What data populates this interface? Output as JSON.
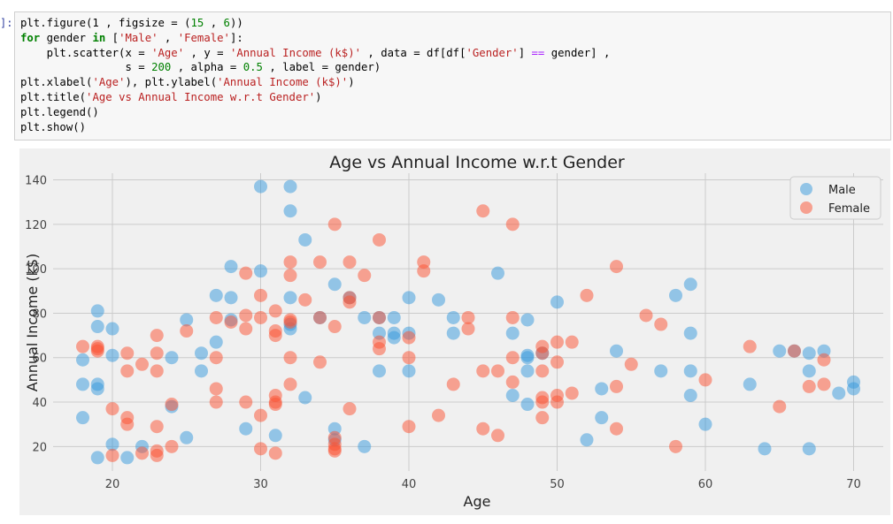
{
  "cell": {
    "prompt": "]:",
    "code_lines": [
      [
        {
          "t": "plt.figure(1 , figsize = ("
        },
        {
          "t": "15",
          "c": "num"
        },
        {
          "t": " , "
        },
        {
          "t": "6",
          "c": "num"
        },
        {
          "t": "))"
        }
      ],
      [
        {
          "t": "for",
          "c": "kw"
        },
        {
          "t": " gender "
        },
        {
          "t": "in",
          "c": "kw"
        },
        {
          "t": " ["
        },
        {
          "t": "'Male'",
          "c": "str"
        },
        {
          "t": " , "
        },
        {
          "t": "'Female'",
          "c": "str"
        },
        {
          "t": "]:"
        }
      ],
      [
        {
          "t": "    plt.scatter(x = "
        },
        {
          "t": "'Age'",
          "c": "str"
        },
        {
          "t": " , y = "
        },
        {
          "t": "'Annual Income (k$)'",
          "c": "str"
        },
        {
          "t": " , data = df[df["
        },
        {
          "t": "'Gender'",
          "c": "str"
        },
        {
          "t": "] "
        },
        {
          "t": "==",
          "c": "op"
        },
        {
          "t": " gender] ,"
        }
      ],
      [
        {
          "t": "                s = "
        },
        {
          "t": "200",
          "c": "num"
        },
        {
          "t": " , alpha = "
        },
        {
          "t": "0.5",
          "c": "num"
        },
        {
          "t": " , label = gender)"
        }
      ],
      [
        {
          "t": "plt.xlabel("
        },
        {
          "t": "'Age'",
          "c": "str"
        },
        {
          "t": "), plt.ylabel("
        },
        {
          "t": "'Annual Income (k$)'",
          "c": "str"
        },
        {
          "t": ")"
        }
      ],
      [
        {
          "t": "plt.title("
        },
        {
          "t": "'Age vs Annual Income w.r.t Gender'",
          "c": "str"
        },
        {
          "t": ")"
        }
      ],
      [
        {
          "t": "plt.legend()"
        }
      ],
      [
        {
          "t": "plt.show()"
        }
      ]
    ]
  },
  "chart_data": {
    "type": "scatter",
    "title": "Age vs Annual Income w.r.t Gender",
    "xlabel": "Age",
    "ylabel": "Annual Income (k$)",
    "xlim": [
      16,
      72
    ],
    "ylim": [
      9,
      143
    ],
    "xticks": [
      20,
      30,
      40,
      50,
      60,
      70
    ],
    "yticks": [
      20,
      40,
      60,
      80,
      100,
      120,
      140
    ],
    "grid": true,
    "legend_position": "top-right",
    "background": "#f0f0f0",
    "series": [
      {
        "name": "Male",
        "color": "#3498db",
        "points": [
          [
            18,
            33
          ],
          [
            18,
            48
          ],
          [
            18,
            59
          ],
          [
            19,
            15
          ],
          [
            19,
            46
          ],
          [
            19,
            48
          ],
          [
            19,
            74
          ],
          [
            19,
            81
          ],
          [
            20,
            21
          ],
          [
            20,
            61
          ],
          [
            20,
            73
          ],
          [
            21,
            15
          ],
          [
            22,
            20
          ],
          [
            24,
            38
          ],
          [
            24,
            60
          ],
          [
            25,
            24
          ],
          [
            25,
            77
          ],
          [
            26,
            54
          ],
          [
            26,
            62
          ],
          [
            27,
            67
          ],
          [
            27,
            88
          ],
          [
            28,
            77
          ],
          [
            28,
            87
          ],
          [
            28,
            101
          ],
          [
            29,
            28
          ],
          [
            30,
            99
          ],
          [
            30,
            137
          ],
          [
            31,
            25
          ],
          [
            32,
            73
          ],
          [
            32,
            75
          ],
          [
            32,
            87
          ],
          [
            32,
            126
          ],
          [
            32,
            137
          ],
          [
            33,
            42
          ],
          [
            33,
            113
          ],
          [
            34,
            78
          ],
          [
            35,
            23
          ],
          [
            35,
            28
          ],
          [
            35,
            93
          ],
          [
            36,
            87
          ],
          [
            37,
            20
          ],
          [
            37,
            78
          ],
          [
            38,
            54
          ],
          [
            38,
            71
          ],
          [
            38,
            78
          ],
          [
            39,
            69
          ],
          [
            39,
            71
          ],
          [
            39,
            78
          ],
          [
            40,
            54
          ],
          [
            40,
            71
          ],
          [
            40,
            87
          ],
          [
            42,
            86
          ],
          [
            43,
            71
          ],
          [
            43,
            78
          ],
          [
            46,
            98
          ],
          [
            47,
            43
          ],
          [
            47,
            71
          ],
          [
            48,
            39
          ],
          [
            48,
            54
          ],
          [
            48,
            60
          ],
          [
            48,
            61
          ],
          [
            48,
            77
          ],
          [
            49,
            62
          ],
          [
            50,
            85
          ],
          [
            52,
            23
          ],
          [
            53,
            33
          ],
          [
            53,
            46
          ],
          [
            54,
            63
          ],
          [
            57,
            54
          ],
          [
            58,
            88
          ],
          [
            59,
            43
          ],
          [
            59,
            54
          ],
          [
            59,
            71
          ],
          [
            59,
            93
          ],
          [
            60,
            30
          ],
          [
            63,
            48
          ],
          [
            64,
            19
          ],
          [
            65,
            63
          ],
          [
            66,
            63
          ],
          [
            67,
            19
          ],
          [
            67,
            54
          ],
          [
            67,
            62
          ],
          [
            68,
            63
          ],
          [
            69,
            44
          ],
          [
            70,
            46
          ],
          [
            70,
            49
          ]
        ]
      },
      {
        "name": "Female",
        "color": "#fc4f30",
        "points": [
          [
            18,
            65
          ],
          [
            19,
            63
          ],
          [
            19,
            64
          ],
          [
            19,
            65
          ],
          [
            20,
            16
          ],
          [
            20,
            37
          ],
          [
            21,
            30
          ],
          [
            21,
            33
          ],
          [
            21,
            54
          ],
          [
            21,
            62
          ],
          [
            22,
            17
          ],
          [
            22,
            57
          ],
          [
            23,
            16
          ],
          [
            23,
            18
          ],
          [
            23,
            29
          ],
          [
            23,
            54
          ],
          [
            23,
            62
          ],
          [
            23,
            70
          ],
          [
            24,
            20
          ],
          [
            24,
            39
          ],
          [
            25,
            72
          ],
          [
            27,
            40
          ],
          [
            27,
            46
          ],
          [
            27,
            60
          ],
          [
            27,
            78
          ],
          [
            28,
            76
          ],
          [
            29,
            40
          ],
          [
            29,
            73
          ],
          [
            29,
            79
          ],
          [
            29,
            98
          ],
          [
            30,
            19
          ],
          [
            30,
            34
          ],
          [
            30,
            78
          ],
          [
            30,
            88
          ],
          [
            31,
            17
          ],
          [
            31,
            39
          ],
          [
            31,
            40
          ],
          [
            31,
            43
          ],
          [
            31,
            70
          ],
          [
            31,
            72
          ],
          [
            31,
            81
          ],
          [
            32,
            48
          ],
          [
            32,
            60
          ],
          [
            32,
            76
          ],
          [
            32,
            77
          ],
          [
            32,
            97
          ],
          [
            32,
            103
          ],
          [
            33,
            86
          ],
          [
            34,
            58
          ],
          [
            34,
            78
          ],
          [
            34,
            103
          ],
          [
            35,
            18
          ],
          [
            35,
            19
          ],
          [
            35,
            21
          ],
          [
            35,
            24
          ],
          [
            35,
            74
          ],
          [
            35,
            120
          ],
          [
            36,
            37
          ],
          [
            36,
            85
          ],
          [
            36,
            87
          ],
          [
            36,
            103
          ],
          [
            37,
            97
          ],
          [
            38,
            64
          ],
          [
            38,
            67
          ],
          [
            38,
            78
          ],
          [
            38,
            113
          ],
          [
            40,
            29
          ],
          [
            40,
            60
          ],
          [
            40,
            69
          ],
          [
            41,
            99
          ],
          [
            41,
            103
          ],
          [
            42,
            34
          ],
          [
            43,
            48
          ],
          [
            44,
            73
          ],
          [
            44,
            78
          ],
          [
            45,
            28
          ],
          [
            45,
            54
          ],
          [
            45,
            126
          ],
          [
            46,
            25
          ],
          [
            46,
            54
          ],
          [
            47,
            49
          ],
          [
            47,
            60
          ],
          [
            47,
            78
          ],
          [
            47,
            120
          ],
          [
            49,
            33
          ],
          [
            49,
            40
          ],
          [
            49,
            42
          ],
          [
            49,
            54
          ],
          [
            49,
            62
          ],
          [
            49,
            65
          ],
          [
            50,
            40
          ],
          [
            50,
            43
          ],
          [
            50,
            58
          ],
          [
            50,
            67
          ],
          [
            51,
            44
          ],
          [
            51,
            67
          ],
          [
            52,
            88
          ],
          [
            54,
            28
          ],
          [
            54,
            47
          ],
          [
            54,
            101
          ],
          [
            55,
            57
          ],
          [
            56,
            79
          ],
          [
            57,
            75
          ],
          [
            58,
            20
          ],
          [
            60,
            50
          ],
          [
            63,
            65
          ],
          [
            65,
            38
          ],
          [
            66,
            63
          ],
          [
            67,
            47
          ],
          [
            68,
            48
          ],
          [
            68,
            59
          ]
        ]
      }
    ]
  }
}
